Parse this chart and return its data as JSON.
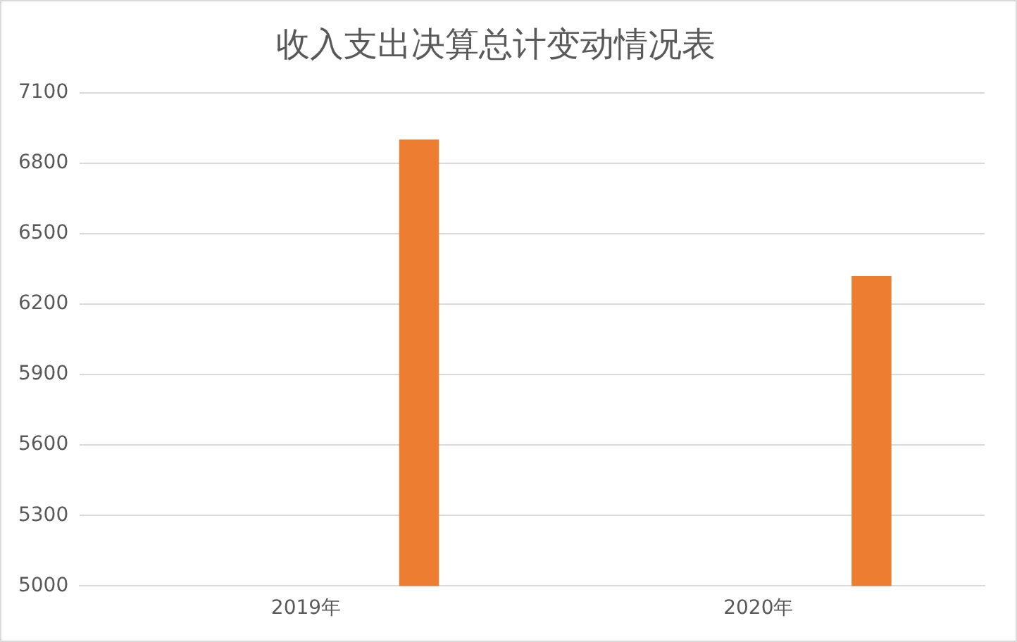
{
  "chart_data": {
    "type": "bar",
    "title": "收入支出决算总计变动情况表",
    "categories": [
      "2019年",
      "2020年"
    ],
    "series": [
      {
        "color": "#ed7d31",
        "values": [
          6900,
          6320
        ]
      }
    ],
    "ylim": [
      5000,
      7100
    ],
    "yticks": [
      5000,
      5300,
      5600,
      5900,
      6200,
      6500,
      6800,
      7100
    ],
    "grid": "y",
    "legend": false
  }
}
